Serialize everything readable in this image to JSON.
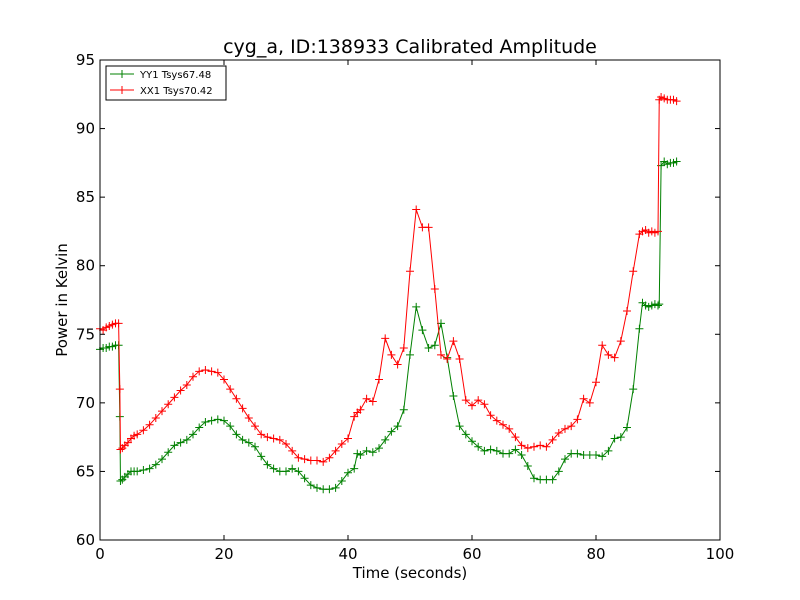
{
  "chart_data": {
    "type": "line",
    "title": "cyg_a, ID:138933 Calibrated Amplitude",
    "xlabel": "Time (seconds)",
    "ylabel": "Power in Kelvin",
    "xlim": [
      0,
      100
    ],
    "ylim": [
      60,
      95
    ],
    "xticks": [
      0,
      20,
      40,
      60,
      80,
      100
    ],
    "yticks": [
      60,
      65,
      70,
      75,
      80,
      85,
      90,
      95
    ],
    "xtick_labels": [
      "0",
      "20",
      "40",
      "60",
      "80",
      "100"
    ],
    "ytick_labels": [
      "60",
      "65",
      "70",
      "75",
      "80",
      "85",
      "90",
      "95"
    ],
    "grid": false,
    "legend_position": "top-left",
    "series": [
      {
        "name": "YY1 Tsys67.48",
        "color": "#008000",
        "marker": "+",
        "x": [
          0,
          0.5,
          1,
          1.5,
          2,
          2.5,
          3,
          3.2,
          3.3,
          3.6,
          4,
          4.5,
          5,
          5.5,
          6,
          7,
          8,
          9,
          10,
          11,
          12,
          13,
          14,
          15,
          16,
          17,
          18,
          19,
          20,
          21,
          22,
          23,
          24,
          25,
          26,
          27,
          28,
          29,
          30,
          31,
          32,
          33,
          34,
          35,
          36,
          37,
          38,
          39,
          40,
          41,
          41.5,
          42,
          43,
          44,
          45,
          46,
          47,
          48,
          49,
          50,
          51,
          52,
          53,
          54,
          55,
          56,
          57,
          58,
          59,
          60,
          61,
          62,
          63,
          64,
          65,
          66,
          67,
          68,
          69,
          70,
          71,
          72,
          73,
          74,
          75,
          76,
          77,
          78,
          79,
          80,
          81,
          82,
          83,
          84,
          85,
          86,
          87,
          87.5,
          88,
          88.5,
          89,
          89.5,
          90,
          90.2,
          90.5,
          91,
          91.5,
          92,
          92.5,
          93
        ],
        "values": [
          73.9,
          74.0,
          74.0,
          74.1,
          74.1,
          74.2,
          74.2,
          69.0,
          64.3,
          64.4,
          64.6,
          64.8,
          65.0,
          65.0,
          65.0,
          65.1,
          65.2,
          65.5,
          65.9,
          66.4,
          66.9,
          67.1,
          67.3,
          67.7,
          68.2,
          68.6,
          68.7,
          68.8,
          68.7,
          68.3,
          67.7,
          67.3,
          67.1,
          66.8,
          66.1,
          65.5,
          65.2,
          65.0,
          65.0,
          65.2,
          65.0,
          64.5,
          64.0,
          63.8,
          63.7,
          63.7,
          63.8,
          64.3,
          64.9,
          65.2,
          66.3,
          66.2,
          66.5,
          66.4,
          66.7,
          67.3,
          67.9,
          68.3,
          69.5,
          73.5,
          77.0,
          75.3,
          74.0,
          74.2,
          75.8,
          73.3,
          70.5,
          68.3,
          67.7,
          67.2,
          66.8,
          66.5,
          66.6,
          66.5,
          66.3,
          66.3,
          66.6,
          66.2,
          65.4,
          64.5,
          64.4,
          64.4,
          64.4,
          65.0,
          65.9,
          66.3,
          66.3,
          66.2,
          66.2,
          66.2,
          66.1,
          66.5,
          67.4,
          67.5,
          68.2,
          71.0,
          75.4,
          77.3,
          77.1,
          77.0,
          77.1,
          77.2,
          77.1,
          77.2,
          87.3,
          87.6,
          87.4,
          87.5,
          87.5,
          87.6
        ],
        "label_color": "#000000"
      },
      {
        "name": "XX1 Tsys70.42",
        "color": "#ff0000",
        "marker": "+",
        "x": [
          0,
          0.5,
          1,
          1.5,
          2,
          2.5,
          3,
          3.2,
          3.3,
          3.6,
          4,
          4.5,
          5,
          5.5,
          6,
          7,
          8,
          9,
          10,
          11,
          12,
          13,
          14,
          15,
          16,
          17,
          18,
          19,
          20,
          21,
          22,
          23,
          24,
          25,
          26,
          27,
          28,
          29,
          30,
          31,
          32,
          33,
          34,
          35,
          36,
          37,
          38,
          39,
          40,
          41,
          41.5,
          42,
          43,
          44,
          45,
          46,
          47,
          48,
          49,
          50,
          51,
          52,
          53,
          54,
          55,
          56,
          57,
          58,
          59,
          60,
          61,
          62,
          63,
          64,
          65,
          66,
          67,
          68,
          69,
          70,
          71,
          72,
          73,
          74,
          75,
          76,
          77,
          78,
          79,
          80,
          81,
          82,
          83,
          84,
          85,
          86,
          87,
          87.5,
          88,
          88.5,
          89,
          89.5,
          90,
          90.2,
          90.5,
          91,
          91.5,
          92,
          92.5,
          93
        ],
        "values": [
          75.4,
          75.3,
          75.5,
          75.6,
          75.7,
          75.8,
          75.8,
          71.0,
          66.6,
          66.7,
          66.9,
          67.1,
          67.4,
          67.6,
          67.7,
          68.0,
          68.4,
          68.9,
          69.4,
          69.9,
          70.4,
          70.9,
          71.3,
          71.9,
          72.3,
          72.4,
          72.3,
          72.2,
          71.7,
          71.0,
          70.3,
          69.6,
          68.9,
          68.3,
          67.7,
          67.5,
          67.4,
          67.3,
          67.0,
          66.5,
          66.0,
          65.9,
          65.8,
          65.8,
          65.7,
          66.0,
          66.5,
          67.0,
          67.4,
          69.0,
          69.3,
          69.5,
          70.3,
          70.1,
          71.7,
          74.7,
          73.5,
          72.8,
          74.0,
          79.6,
          84.1,
          82.8,
          82.8,
          78.3,
          73.5,
          73.2,
          74.5,
          73.2,
          70.2,
          69.8,
          70.2,
          69.9,
          69.1,
          68.7,
          68.4,
          68.1,
          67.5,
          66.9,
          66.7,
          66.8,
          66.9,
          66.8,
          67.3,
          67.8,
          68.1,
          68.3,
          68.8,
          70.3,
          70.0,
          71.5,
          74.2,
          73.5,
          73.3,
          74.5,
          76.7,
          79.6,
          82.3,
          82.5,
          82.6,
          82.4,
          82.5,
          82.4,
          82.5,
          92.1,
          92.3,
          92.2,
          92.1,
          92.1,
          92.1,
          92.0
        ]
      }
    ]
  }
}
